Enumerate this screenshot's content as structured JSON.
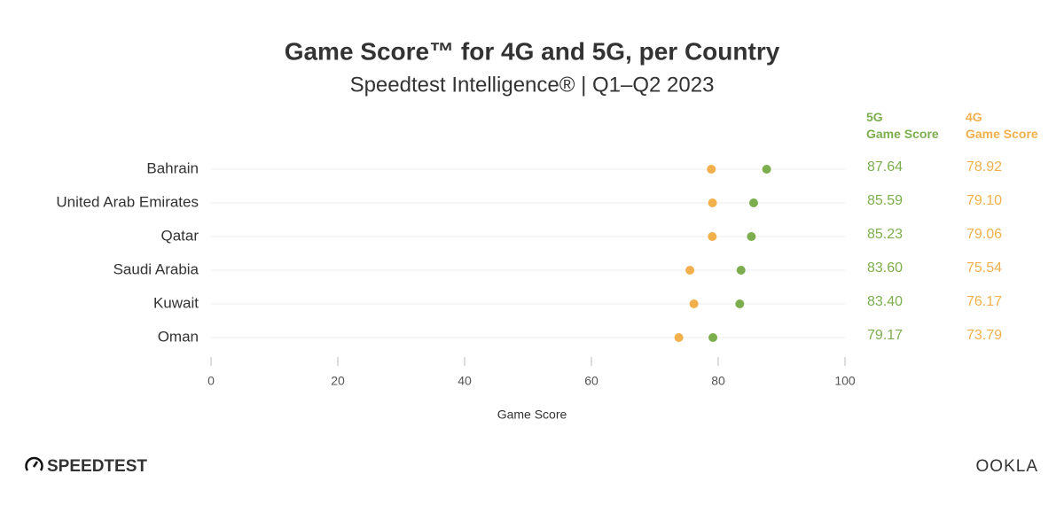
{
  "chart_data": {
    "type": "dot",
    "title": "Game Score™ for 4G and 5G, per Country",
    "subtitle": "Speedtest Intelligence® | Q1–Q2 2023",
    "x_label": "Game Score",
    "categories": [
      "Bahrain",
      "United Arab Emirates",
      "Qatar",
      "Saudi Arabia",
      "Kuwait",
      "Oman"
    ],
    "series": [
      {
        "name": "5G Game Score",
        "color": "#7cae4e",
        "values": [
          87.64,
          85.59,
          85.23,
          83.6,
          83.4,
          79.17
        ],
        "value_labels": [
          "87.64",
          "85.59",
          "85.23",
          "83.60",
          "83.40",
          "79.17"
        ]
      },
      {
        "name": "4G Game Score",
        "color": "#f1b04c",
        "values": [
          78.92,
          79.1,
          79.06,
          75.54,
          76.17,
          73.79
        ],
        "value_labels": [
          "78.92",
          "79.10",
          "79.06",
          "75.54",
          "76.17",
          "73.79"
        ]
      }
    ],
    "xlim": [
      0,
      100
    ],
    "xticks": [
      0,
      20,
      40,
      60,
      80,
      100
    ]
  },
  "logos": {
    "left": "SPEEDTEST",
    "right": "OOKLA"
  }
}
